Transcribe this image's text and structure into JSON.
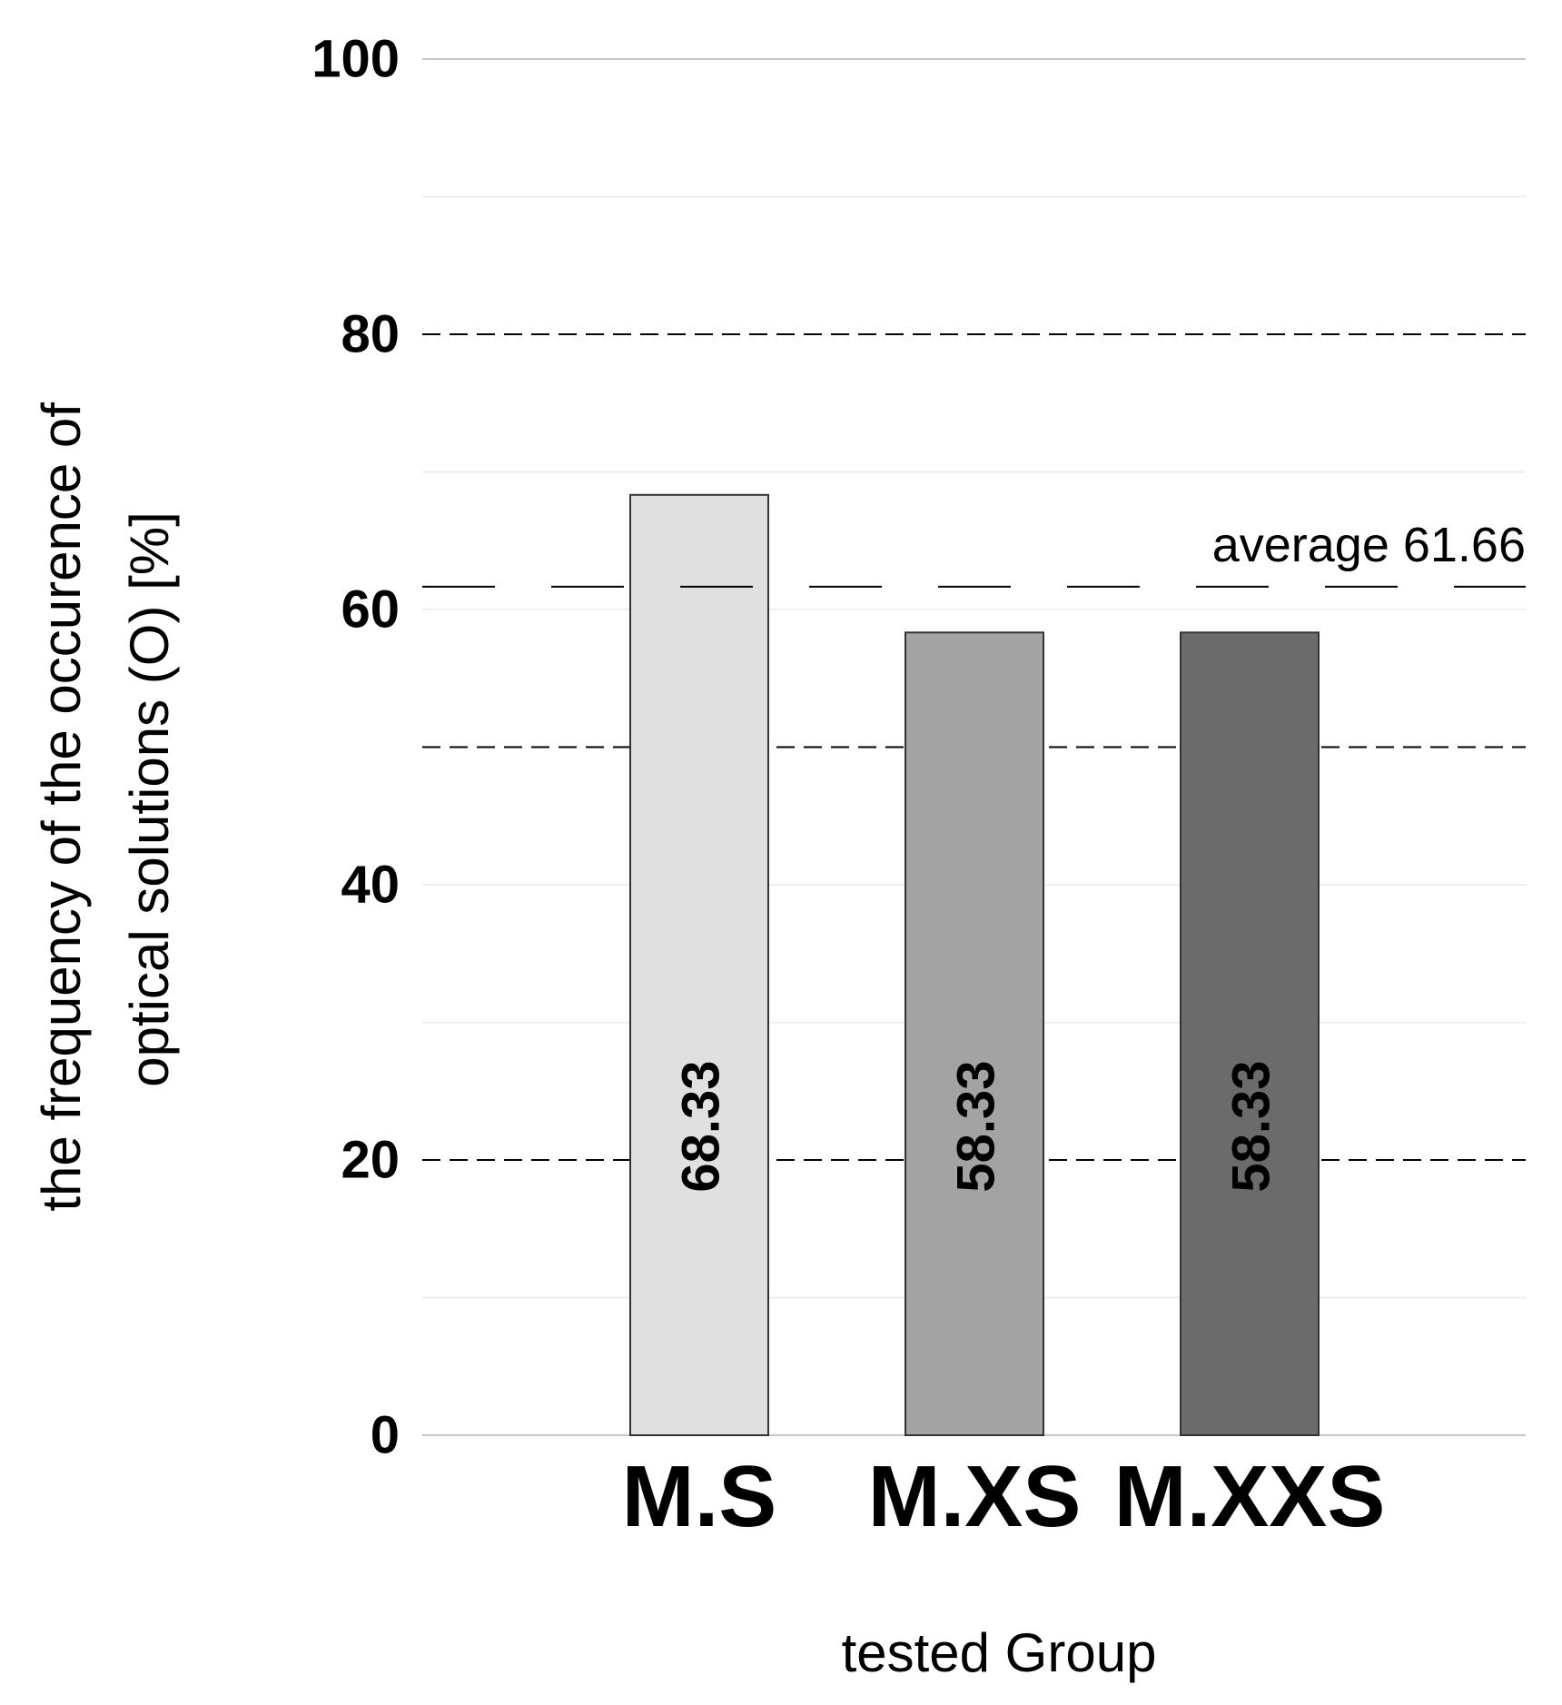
{
  "chart_data": {
    "type": "bar",
    "categories": [
      "M.S",
      "M.XS",
      "M.XXS"
    ],
    "values": [
      68.33,
      58.33,
      58.33
    ],
    "value_labels": [
      "68.33",
      "58.33",
      "58.33"
    ],
    "bar_colors": [
      "#e0e0e0",
      "#a3a3a3",
      "#6b6b6b"
    ],
    "ylabel": "the frequency of the occurence of optical solutions (O) [%]",
    "ylabel_lines": [
      "the frequency of the occurence of",
      "optical solutions (O) [%]"
    ],
    "xlabel": "tested Group",
    "ylim": [
      0,
      100
    ],
    "yticks": [
      0,
      20,
      40,
      60,
      80,
      100
    ],
    "ytick_labels": [
      "0",
      "20",
      "40",
      "60",
      "80",
      "100"
    ],
    "dashed_gridlines": [
      20,
      50,
      80
    ],
    "solid_gridlines": [
      0,
      100
    ],
    "faint_gridlines": [
      10,
      30,
      40,
      60,
      70,
      90
    ],
    "average": {
      "value": 61.66,
      "label": "average 61.66"
    }
  }
}
